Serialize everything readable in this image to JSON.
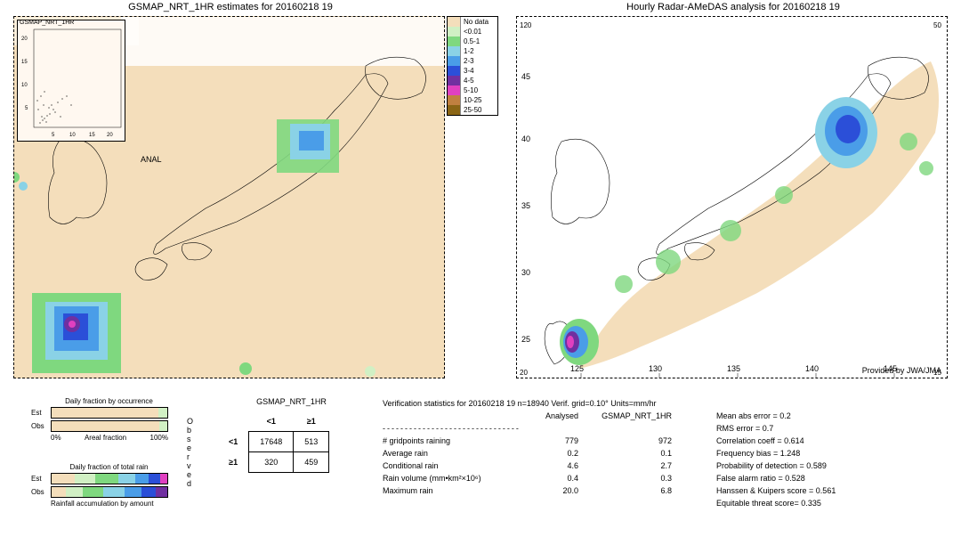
{
  "left_map": {
    "title": "GSMAP_NRT_1HR estimates for 20160218 19",
    "inset_title": "GSMAP_NRT_1HR",
    "anal_label": "ANAL",
    "inset_ticks_y": [
      "5",
      "10",
      "15",
      "20"
    ],
    "inset_ticks_x": [
      "5",
      "10",
      "15",
      "20"
    ],
    "background_color": "#f4debb"
  },
  "right_map": {
    "title": "Hourly Radar-AMeDAS analysis for 20160218 19",
    "x_ticks": [
      "125",
      "130",
      "135",
      "140",
      "145"
    ],
    "y_ticks": [
      "25",
      "30",
      "35",
      "40",
      "45"
    ],
    "y_edge_labels": [
      "20",
      "50"
    ],
    "x_edge_labels": [
      "120",
      "15"
    ],
    "provider": "Provided by JWA/JMA",
    "background_color": "#ffffff"
  },
  "legend": {
    "items": [
      {
        "label": "No data",
        "color": "#f4debb"
      },
      {
        "label": "<0.01",
        "color": "#d1f0c4"
      },
      {
        "label": "0.5-1",
        "color": "#7fd87f"
      },
      {
        "label": "1-2",
        "color": "#8ad2e6"
      },
      {
        "label": "2-3",
        "color": "#4a9de8"
      },
      {
        "label": "3-4",
        "color": "#2b4fd8"
      },
      {
        "label": "4-5",
        "color": "#7030a0"
      },
      {
        "label": "5-10",
        "color": "#e040c0"
      },
      {
        "label": "10-25",
        "color": "#c08040"
      },
      {
        "label": "25-50",
        "color": "#8a6515"
      }
    ]
  },
  "frac_occ": {
    "title": "Daily fraction by occurrence",
    "rows": [
      {
        "label": "Est",
        "segments": [
          {
            "color": "#f4debb",
            "w": 0.92
          },
          {
            "color": "#d1f0c4",
            "w": 0.08
          }
        ]
      },
      {
        "label": "Obs",
        "segments": [
          {
            "color": "#f4debb",
            "w": 0.93
          },
          {
            "color": "#d1f0c4",
            "w": 0.07
          }
        ]
      }
    ],
    "axis_left": "0%",
    "axis_mid": "Areal fraction",
    "axis_right": "100%"
  },
  "frac_rain": {
    "title": "Daily fraction of total rain",
    "rows": [
      {
        "label": "Est",
        "segments": [
          {
            "color": "#f4debb",
            "w": 0.2
          },
          {
            "color": "#d1f0c4",
            "w": 0.18
          },
          {
            "color": "#7fd87f",
            "w": 0.2
          },
          {
            "color": "#8ad2e6",
            "w": 0.14
          },
          {
            "color": "#4a9de8",
            "w": 0.12
          },
          {
            "color": "#2b4fd8",
            "w": 0.1
          },
          {
            "color": "#e040c0",
            "w": 0.06
          }
        ]
      },
      {
        "label": "Obs",
        "segments": [
          {
            "color": "#f4debb",
            "w": 0.12
          },
          {
            "color": "#d1f0c4",
            "w": 0.15
          },
          {
            "color": "#7fd87f",
            "w": 0.18
          },
          {
            "color": "#8ad2e6",
            "w": 0.18
          },
          {
            "color": "#4a9de8",
            "w": 0.15
          },
          {
            "color": "#2b4fd8",
            "w": 0.12
          },
          {
            "color": "#7030a0",
            "w": 0.1
          }
        ]
      }
    ],
    "footer": "Rainfall accumulation by amount"
  },
  "ctable": {
    "title": "GSMAP_NRT_1HR",
    "col_left": "<1",
    "col_right": "≥1",
    "row_top": "<1",
    "row_bot": "≥1",
    "cells": [
      [
        "17648",
        "513"
      ],
      [
        "320",
        "459"
      ]
    ],
    "side_label": "Observed"
  },
  "stats": {
    "header": "Verification statistics for 20160218 19   n=18940   Verif. grid=0.10°   Units=mm/hr",
    "cols": [
      "Analysed",
      "GSMAP_NRT_1HR"
    ],
    "dashes": "-------------------------------",
    "rows": [
      {
        "name": "# gridpoints raining",
        "a": "779",
        "g": "972"
      },
      {
        "name": "Average rain",
        "a": "0.2",
        "g": "0.1"
      },
      {
        "name": "Conditional rain",
        "a": "4.6",
        "g": "2.7"
      },
      {
        "name": "Rain volume (mm•km²×10⁶)",
        "a": "0.4",
        "g": "0.3"
      },
      {
        "name": "Maximum rain",
        "a": "20.0",
        "g": "6.8"
      }
    ],
    "metrics": [
      "Mean abs error = 0.2",
      "RMS error = 0.7",
      "Correlation coeff = 0.614",
      "Frequency bias = 1.248",
      "Probability of detection = 0.589",
      "False alarm ratio = 0.528",
      "Hanssen & Kuipers score = 0.561",
      "Equitable threat score= 0.335"
    ]
  }
}
